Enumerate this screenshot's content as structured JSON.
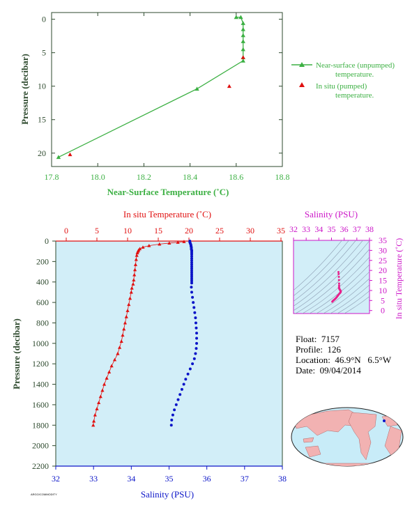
{
  "colors": {
    "green": "#3cb043",
    "red": "#e01010",
    "blue": "#0a14c8",
    "magenta": "#cc16c8",
    "axis_green": "#2e4a2e",
    "panel_bg": "#d2eef8",
    "land": "#f2b2b2",
    "ocean": "#c8ecf8"
  },
  "info": {
    "float": "Float:  7157",
    "profile": "Profile:  126",
    "location": "Location:  46.9°N   6.5°W",
    "date": "Date:  09/04/2014"
  },
  "credit": "ARGO/COMMODITY",
  "chart_data": [
    {
      "id": "near_surface",
      "type": "scatter",
      "xlabel": "Near-Surface Temperature (˚C)",
      "ylabel": "Pressure (decibar)",
      "xlim": [
        17.8,
        18.8
      ],
      "ylim": [
        22,
        -1
      ],
      "xticks": [
        "17.8",
        "18.0",
        "18.2",
        "18.4",
        "18.6",
        "18.8"
      ],
      "yticks": [
        "0",
        "5",
        "10",
        "15",
        "20"
      ],
      "legend_position": "right",
      "series": [
        {
          "name": "Near-surface (unpumped) temperature.",
          "legend_lines": [
            "Near-surface (unpumped)",
            "temperature."
          ],
          "marker": "line+triangle",
          "x": [
            18.6,
            18.62,
            18.63,
            18.63,
            18.63,
            18.63,
            18.63,
            18.63,
            18.63,
            18.43,
            17.83
          ],
          "y": [
            -0.3,
            -0.3,
            0.6,
            1.5,
            2.4,
            3.3,
            4.5,
            5.7,
            6.2,
            10.4,
            20.6
          ]
        },
        {
          "name": "In situ (pumped) temperature.",
          "legend_lines": [
            "In situ (pumped)",
            "temperature."
          ],
          "marker": "triangle",
          "x": [
            18.63,
            18.57,
            17.88
          ],
          "y": [
            5.7,
            10.0,
            20.2
          ]
        }
      ]
    },
    {
      "id": "profile",
      "type": "scatter",
      "top_xlabel": "In situ Temperature (˚C)",
      "bottom_xlabel": "Salinity (PSU)",
      "ylabel": "Pressure (decibar)",
      "temperature_lim": [
        -2,
        35
      ],
      "salinity_lim": [
        32,
        38
      ],
      "ylim": [
        2200,
        0
      ],
      "top_xticks": [
        "0",
        "5",
        "10",
        "15",
        "20",
        "25",
        "30",
        "35"
      ],
      "bottom_xticks": [
        "32",
        "33",
        "34",
        "35",
        "36",
        "37",
        "38"
      ],
      "yticks": [
        "0",
        "200",
        "400",
        "600",
        "800",
        "1000",
        "1200",
        "1400",
        "1600",
        "1800",
        "2000",
        "2200"
      ],
      "temperature": {
        "name": "In situ Temperature",
        "pressure": [
          5,
          12,
          20,
          30,
          45,
          60,
          75,
          88,
          100,
          115,
          140,
          180,
          230,
          280,
          330,
          380,
          420,
          460,
          500,
          560,
          620,
          680,
          740,
          800,
          860,
          920,
          980,
          1040,
          1100,
          1160,
          1220,
          1280,
          1340,
          1400,
          1460,
          1520,
          1580,
          1640,
          1700,
          1760,
          1800
        ],
        "values": [
          19.2,
          18.2,
          16.8,
          15.2,
          13.5,
          12.5,
          12.0,
          11.8,
          11.7,
          11.6,
          11.5,
          11.4,
          11.3,
          11.2,
          11.1,
          11.0,
          10.9,
          10.7,
          10.6,
          10.4,
          10.2,
          10.0,
          9.8,
          9.6,
          9.4,
          9.2,
          9.0,
          8.7,
          8.4,
          7.9,
          7.4,
          7.0,
          6.6,
          6.2,
          5.9,
          5.6,
          5.3,
          5.0,
          4.7,
          4.5,
          4.4
        ]
      },
      "salinity": {
        "name": "Salinity",
        "pressure": [
          0,
          10,
          20,
          30,
          40,
          50,
          60,
          70,
          80,
          90,
          100,
          115,
          130,
          150,
          170,
          190,
          210,
          230,
          250,
          270,
          290,
          310,
          330,
          350,
          370,
          390,
          410,
          450,
          500,
          550,
          600,
          650,
          700,
          750,
          800,
          850,
          900,
          950,
          1000,
          1050,
          1100,
          1150,
          1200,
          1250,
          1300,
          1350,
          1400,
          1450,
          1500,
          1550,
          1600,
          1650,
          1700,
          1750,
          1800
        ],
        "values": [
          35.55,
          35.55,
          35.56,
          35.57,
          35.58,
          35.58,
          35.59,
          35.59,
          35.59,
          35.6,
          35.6,
          35.6,
          35.6,
          35.6,
          35.6,
          35.6,
          35.6,
          35.6,
          35.6,
          35.6,
          35.6,
          35.6,
          35.6,
          35.6,
          35.6,
          35.6,
          35.6,
          35.59,
          35.6,
          35.62,
          35.64,
          35.66,
          35.68,
          35.7,
          35.71,
          35.72,
          35.73,
          35.73,
          35.73,
          35.72,
          35.7,
          35.67,
          35.62,
          35.56,
          35.5,
          35.44,
          35.39,
          35.34,
          35.29,
          35.24,
          35.19,
          35.14,
          35.1,
          35.07,
          35.06
        ]
      }
    },
    {
      "id": "ts_diagram",
      "type": "scatter",
      "top_xlabel": "Salinity (PSU)",
      "right_ylabel": "In situ Temperature (˚C)",
      "xlim": [
        32,
        38
      ],
      "ylim": [
        -1.5,
        35
      ],
      "xticks": [
        "32",
        "33",
        "34",
        "35",
        "36",
        "37",
        "38"
      ],
      "yticks": [
        "0",
        "5",
        "10",
        "15",
        "20",
        "25",
        "30",
        "35"
      ],
      "points": {
        "salinity": [
          35.06,
          35.1,
          35.15,
          35.2,
          35.25,
          35.3,
          35.35,
          35.4,
          35.45,
          35.5,
          35.56,
          35.62,
          35.67,
          35.7,
          35.72,
          35.73,
          35.73,
          35.72,
          35.7,
          35.68,
          35.66,
          35.64,
          35.62,
          35.6,
          35.59,
          35.6,
          35.6,
          35.6,
          35.59,
          35.58,
          35.56,
          35.55
        ],
        "temperature": [
          4.4,
          4.7,
          5.0,
          5.3,
          5.6,
          5.9,
          6.2,
          6.6,
          7.0,
          7.4,
          7.9,
          8.4,
          8.7,
          9.0,
          9.2,
          9.4,
          9.6,
          9.8,
          10.0,
          10.2,
          10.4,
          10.6,
          10.9,
          11.1,
          11.4,
          11.7,
          12.5,
          13.5,
          15.2,
          16.8,
          18.2,
          19.2
        ]
      }
    }
  ],
  "map": {
    "float_position": {
      "lat": 46.9,
      "lon": -6.5
    }
  }
}
